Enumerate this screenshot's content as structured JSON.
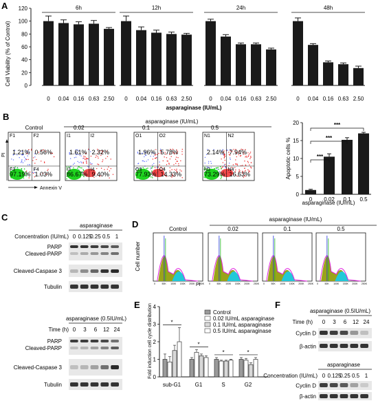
{
  "panel_letters": {
    "a": "A",
    "b": "B",
    "c": "C",
    "d": "D",
    "e": "E",
    "f": "F"
  },
  "colors": {
    "bar": "#1a1a1a",
    "blot_band": "#1f1f1f",
    "blot_bg": "#e8e8e8",
    "flow_green": "#1fd31f",
    "flow_red": "#ee2020",
    "flow_blue": "#5a6cff",
    "hist_olive": "#9aa31a",
    "hist_cyan": "#22c8d8",
    "hist_magenta": "#e022e0",
    "hist_blue": "#2233dd",
    "hist_green": "#22bb22"
  },
  "chart_data": [
    {
      "id": "A",
      "type": "bar",
      "ylabel": "Cell Viability (% of Control)",
      "xlabel": "asparaginase (IU/mL)",
      "ylim": [
        0,
        120
      ],
      "yticks": [
        "0",
        "20",
        "40",
        "60",
        "80",
        "100",
        "120"
      ],
      "groups": [
        {
          "label": "6h",
          "categories": [
            "0",
            "0.04",
            "0.16",
            "0.63",
            "2.50"
          ],
          "values": [
            100,
            97,
            95,
            96,
            88
          ],
          "errors": [
            8,
            5,
            4,
            5,
            2
          ]
        },
        {
          "label": "12h",
          "categories": [
            "0",
            "0.04",
            "0.16",
            "0.63",
            "2.50"
          ],
          "values": [
            100,
            86,
            82,
            80,
            79
          ],
          "errors": [
            8,
            5,
            4,
            3,
            2
          ]
        },
        {
          "label": "24h",
          "categories": [
            "0",
            "0.04",
            "0.16",
            "0.63",
            "2.50"
          ],
          "values": [
            100,
            76,
            64,
            64,
            56
          ],
          "errors": [
            3,
            3,
            2,
            2,
            2
          ]
        },
        {
          "label": "48h",
          "categories": [
            "0",
            "0.04",
            "0.16",
            "0.63",
            "2.50"
          ],
          "values": [
            100,
            63,
            36,
            33,
            27
          ],
          "errors": [
            5,
            2,
            2,
            2,
            3
          ]
        }
      ]
    },
    {
      "id": "B-bar",
      "type": "bar",
      "ylabel": "Apoptotic cells %",
      "xlabel": "asparaginase (IU/mL)",
      "ylim": [
        0,
        20
      ],
      "yticks": [
        "0",
        "5",
        "10",
        "15",
        "20"
      ],
      "categories": [
        "0",
        "0.02",
        "0.1",
        "0.5"
      ],
      "values": [
        1.2,
        10.5,
        15.2,
        17.0
      ],
      "errors": [
        0.2,
        0.8,
        0.6,
        0.3
      ],
      "significance": [
        "***",
        "***",
        "***"
      ]
    },
    {
      "id": "E",
      "type": "bar",
      "ylabel": "Fold induction cell cycle distribution",
      "ylim": [
        0,
        4
      ],
      "yticks": [
        "0",
        "1",
        "2",
        "3",
        "4"
      ],
      "categories": [
        "sub-G1",
        "G1",
        "S",
        "G2"
      ],
      "series": [
        {
          "name": "Control",
          "values": [
            1.0,
            1.0,
            1.0,
            1.0
          ],
          "errors": [
            0.3,
            0.1,
            0.1,
            0.1
          ]
        },
        {
          "name": "0.02 IU/mL asparaginase",
          "values": [
            0.85,
            1.4,
            0.9,
            0.95
          ],
          "errors": [
            0.3,
            0.15,
            0.05,
            0.1
          ]
        },
        {
          "name": "0.1 IU/mL asparaginase",
          "values": [
            1.5,
            1.2,
            0.9,
            0.7
          ],
          "errors": [
            0.3,
            0.1,
            0.05,
            0.1
          ]
        },
        {
          "name": "0.5 IU/mL asparaginase",
          "values": [
            2.0,
            1.1,
            0.95,
            1.0
          ],
          "errors": [
            0.8,
            0.1,
            0.05,
            0.1
          ]
        }
      ],
      "significance": "*"
    }
  ],
  "flow": {
    "group_label": "asparaginase (IU/mL)",
    "yaxis": "PI",
    "xaxis": "Annexin V",
    "plots": [
      {
        "title": "Control",
        "ul": "1.21%",
        "ur": "0.56%",
        "ll": "97.19%",
        "lr": "1.03%",
        "q": [
          "F1",
          "F2",
          "F3",
          "F4"
        ]
      },
      {
        "title": "0.02",
        "ul": "1.61%",
        "ur": "2.32%",
        "ll": "86.67%",
        "lr": "9.40%",
        "q": [
          "I1",
          "I2",
          "I3",
          "I4"
        ]
      },
      {
        "title": "0.1",
        "ul": "1.96%",
        "ur": "5.78%",
        "ll": "77.93%",
        "lr": "14.33%",
        "q": [
          "O1",
          "O2",
          "O3",
          "O4"
        ]
      },
      {
        "title": "0.5",
        "ul": "2.14%",
        "ur": "7.94%",
        "ll": "73.29%",
        "lr": "16.63%",
        "q": [
          "N1",
          "N2",
          "N3",
          "N4"
        ]
      }
    ]
  },
  "western_c_top": {
    "header": "asparaginase",
    "row_label": "Concentration (IU/mL)",
    "lanes": [
      "0",
      "0.125",
      "0.25",
      "0.5",
      "1"
    ],
    "blots": [
      "PARP",
      "Cleaved-PARP",
      "Cleaved-Caspase 3",
      "Tubulin"
    ]
  },
  "western_c_bottom": {
    "header": "asparaginase (0.5IU/mL)",
    "row_label": "Time (h)",
    "lanes": [
      "0",
      "3",
      "6",
      "12",
      "24"
    ],
    "blots": [
      "PARP",
      "Cleaved-PARP",
      "Cleaved-Caspase 3",
      "Tubulin"
    ]
  },
  "histograms": {
    "header": "asparaginase (IU/mL)",
    "ylabel": "Cell number",
    "xlabel": "PI",
    "titles": [
      "Control",
      "0.02",
      "0.1",
      "0.5"
    ],
    "xticks": [
      "0",
      "50K",
      "100K",
      "150K",
      "200K",
      "250K"
    ]
  },
  "western_f_top": {
    "header": "asparaginase (0.5IU/mL)",
    "row_label": "Time (h)",
    "lanes": [
      "0",
      "3",
      "6",
      "12",
      "24"
    ],
    "blots": [
      "Cyclin D",
      "β-actin"
    ]
  },
  "western_f_bottom": {
    "header": "asparaginase",
    "row_label": "Concentration (IU/mL)",
    "lanes": [
      "0",
      "0.125",
      "0.25",
      "0.5",
      "1"
    ],
    "blots": [
      "Cyclin D",
      "β-actin"
    ]
  }
}
